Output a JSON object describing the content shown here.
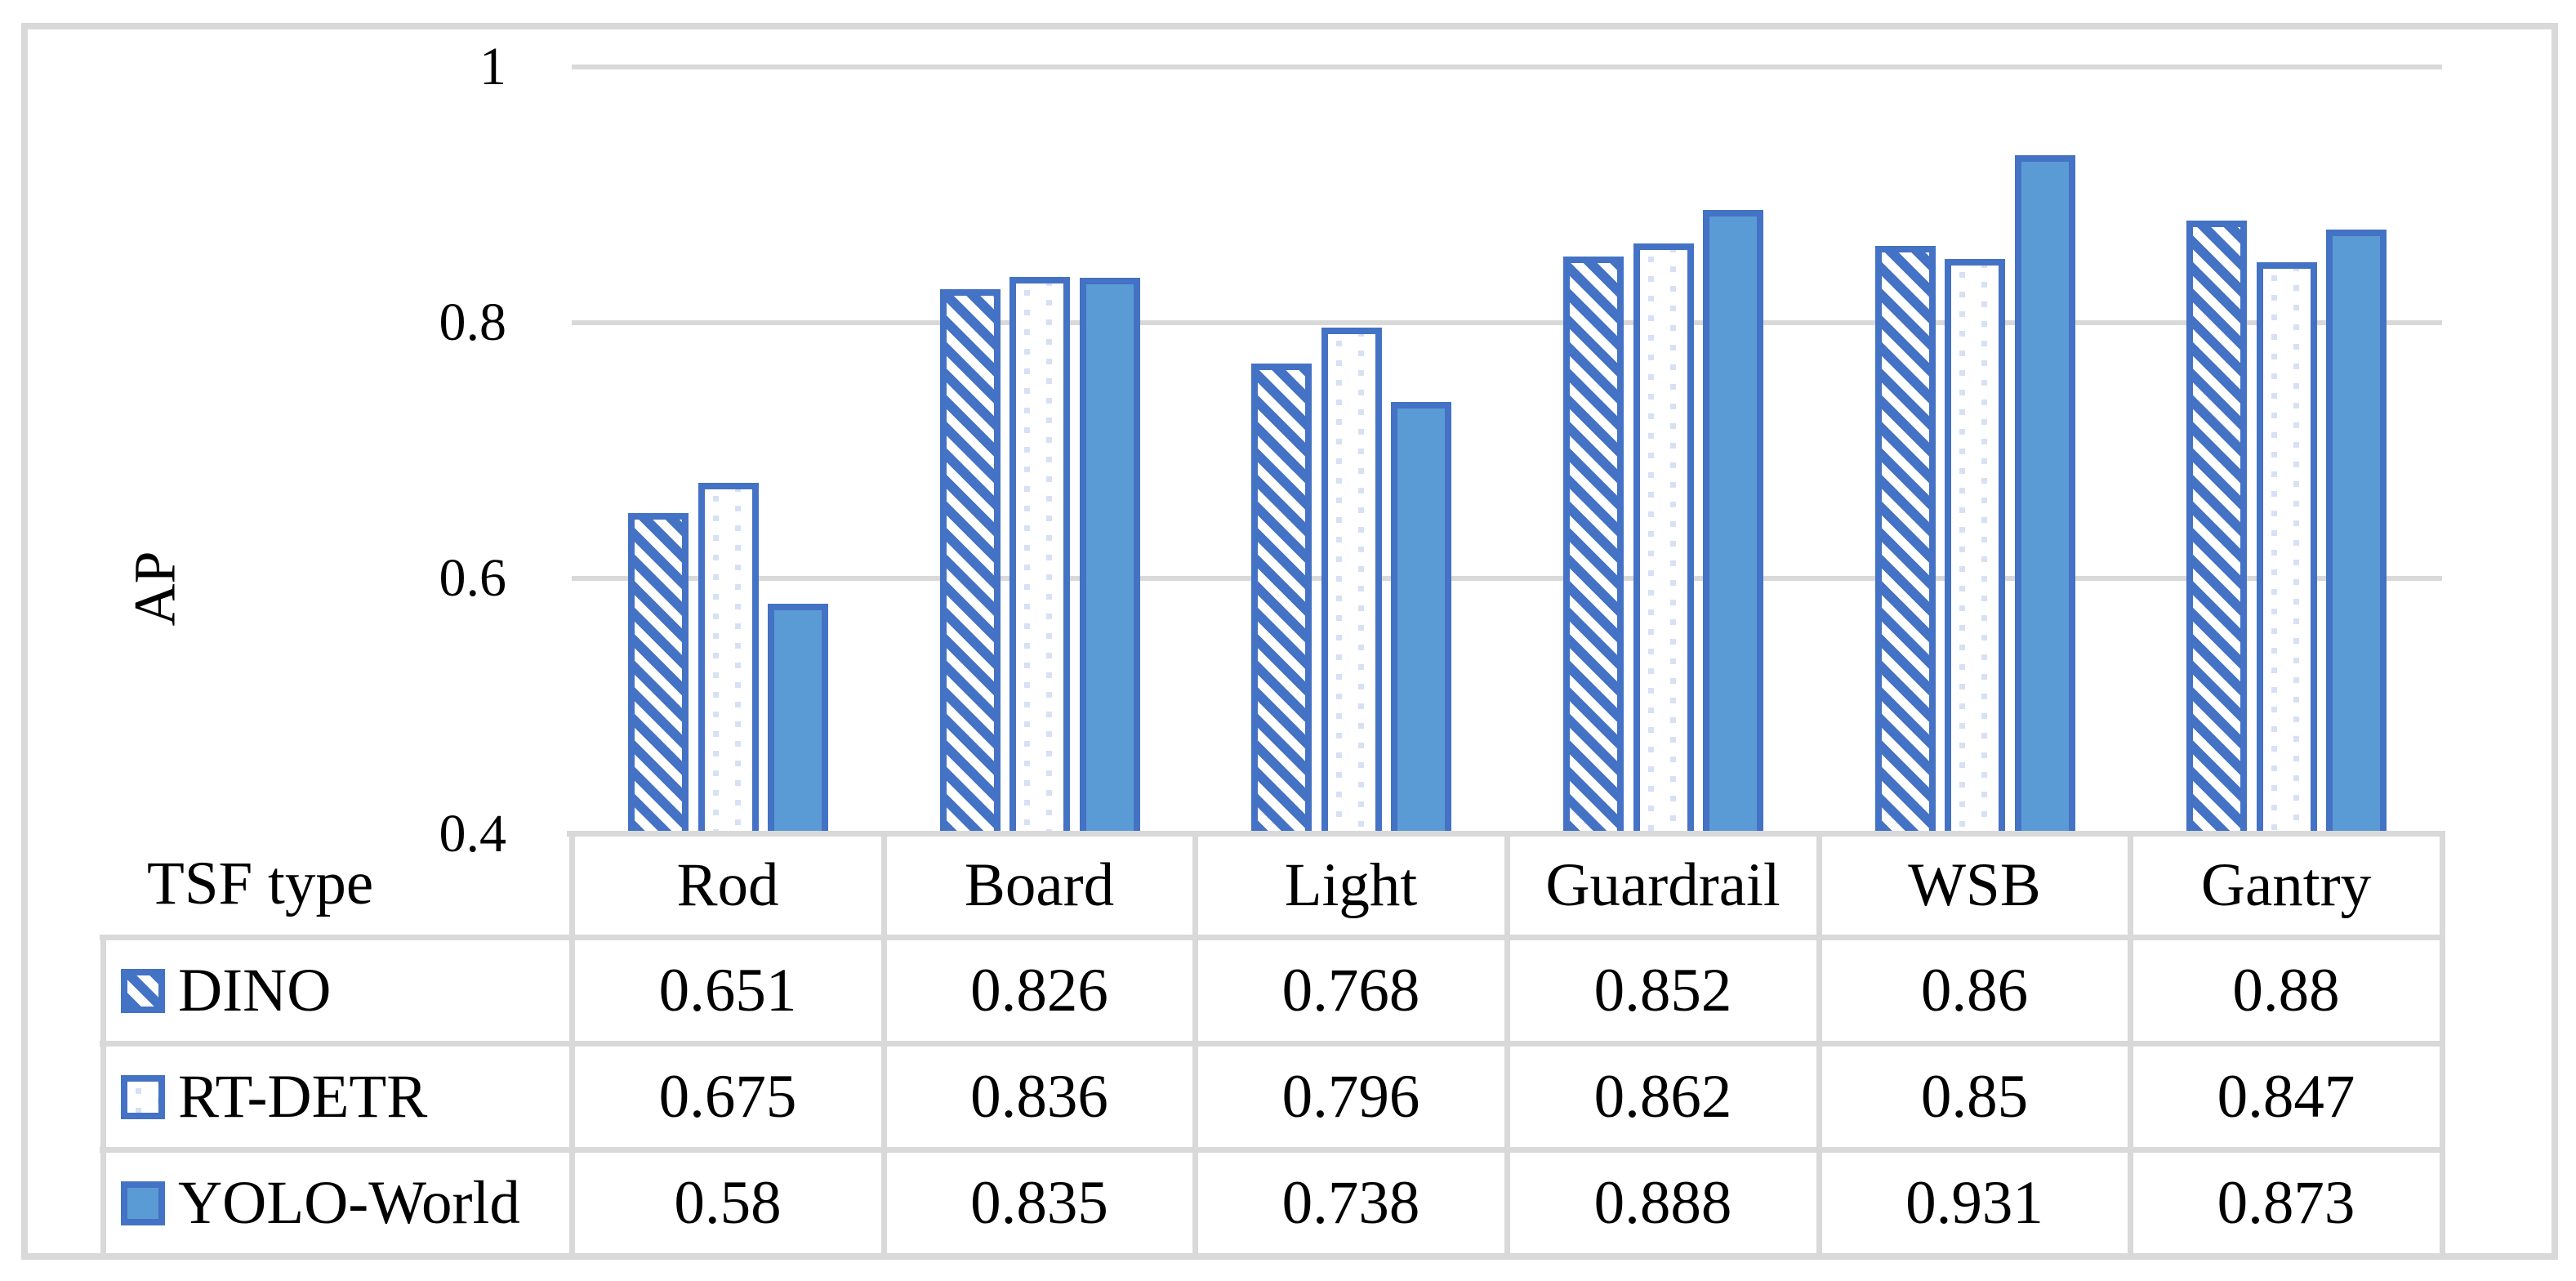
{
  "chart_data": {
    "type": "bar",
    "title": "",
    "xlabel": "TSF type",
    "ylabel": "AP",
    "categories": [
      "Rod",
      "Board",
      "Light",
      "Guardrail",
      "WSB",
      "Gantry"
    ],
    "series": [
      {
        "name": "DINO",
        "pattern": "diagonal-hatch",
        "values": [
          0.651,
          0.826,
          0.768,
          0.852,
          0.86,
          0.88
        ]
      },
      {
        "name": "RT-DETR",
        "pattern": "dots",
        "values": [
          0.675,
          0.836,
          0.796,
          0.862,
          0.85,
          0.847
        ]
      },
      {
        "name": "YOLO-World",
        "pattern": "solid",
        "values": [
          0.58,
          0.835,
          0.738,
          0.888,
          0.931,
          0.873
        ]
      }
    ],
    "ylim": [
      0.4,
      1.0
    ],
    "yticks": [
      {
        "value": 1.0,
        "label": "1"
      },
      {
        "value": 0.8,
        "label": "0.8"
      },
      {
        "value": 0.6,
        "label": "0.6"
      },
      {
        "value": 0.4,
        "label": "0.4"
      }
    ],
    "grid": true,
    "legend_position": "table-rows-left"
  },
  "colors": {
    "accent_border": "#4472C4",
    "solid_fill": "#5B9BD5",
    "dot_fill": "#D7E1F4",
    "gridline": "#D9D9D9",
    "text": "#000000",
    "background": "#FFFFFF"
  }
}
